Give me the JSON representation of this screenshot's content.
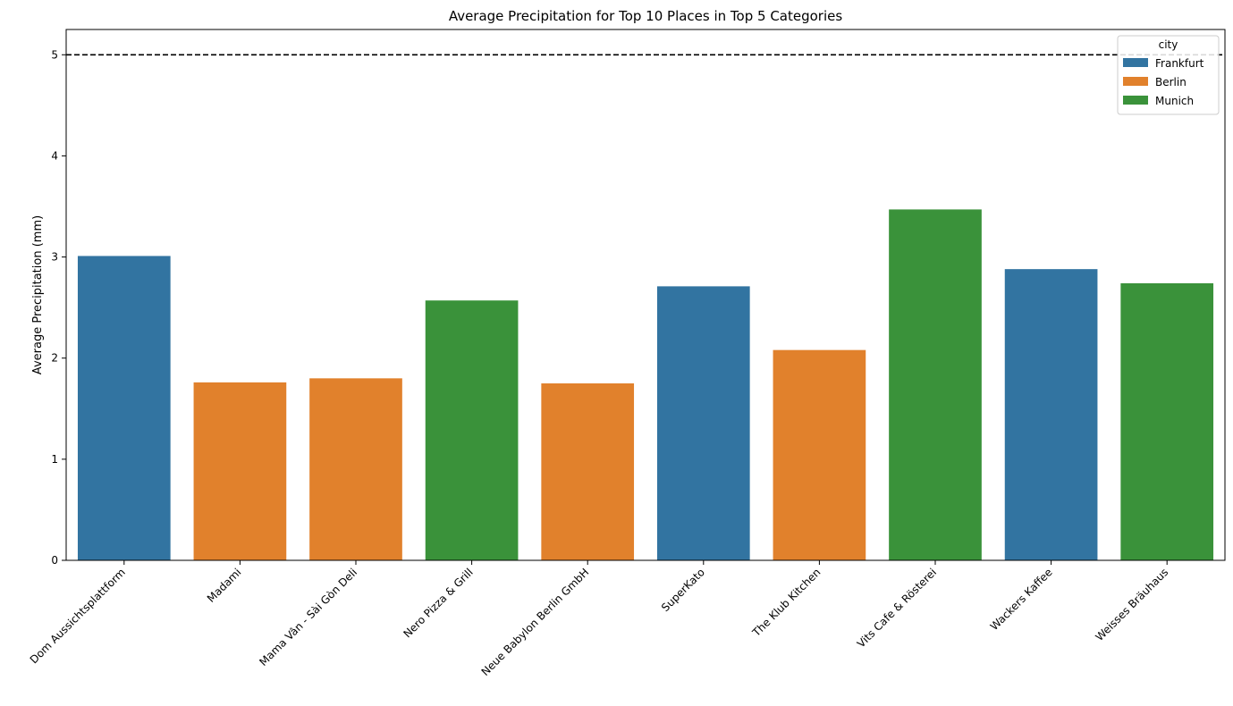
{
  "chart_data": {
    "type": "bar",
    "title": "Average Precipitation for Top 10 Places in Top 5 Categories",
    "xlabel": "",
    "ylabel": "Average Precipitation (mm)",
    "ylim": [
      0,
      5.25
    ],
    "yticks": [
      0,
      1,
      2,
      3,
      4,
      5
    ],
    "grid": false,
    "reference_line": {
      "y": 5,
      "style": "dashed",
      "color": "#000000"
    },
    "categories": [
      "Dom Aussichtsplattform",
      "Madami",
      "Mama Vân - Sài Gòn Deli",
      "Nero Pizza & Grill",
      "Neue Babylon Berlin GmbH",
      "SuperKato",
      "The Klub Kitchen",
      "Vits Cafe & Rösterei",
      "Wackers Kaffee",
      "Weisses Bräuhaus"
    ],
    "values": [
      3.01,
      1.76,
      1.8,
      2.57,
      1.75,
      2.71,
      2.08,
      3.47,
      2.88,
      2.74
    ],
    "city": [
      "Frankfurt",
      "Berlin",
      "Berlin",
      "Munich",
      "Berlin",
      "Frankfurt",
      "Berlin",
      "Munich",
      "Frankfurt",
      "Munich"
    ],
    "legend": {
      "title": "city",
      "placement": "top-right",
      "entries": [
        {
          "label": "Frankfurt",
          "color": "#3274a1"
        },
        {
          "label": "Berlin",
          "color": "#e1812c"
        },
        {
          "label": "Munich",
          "color": "#3a923a"
        }
      ]
    }
  }
}
